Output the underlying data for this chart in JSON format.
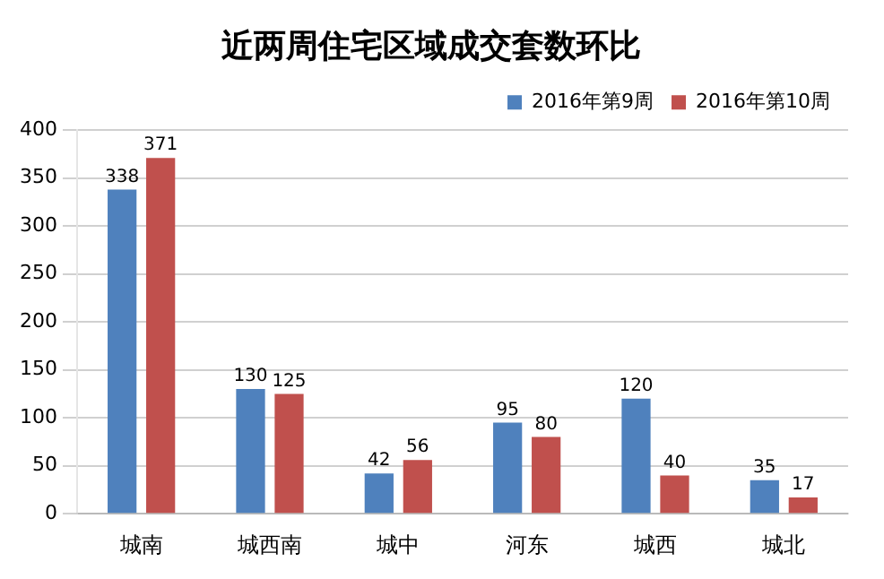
{
  "chart_data": {
    "type": "bar",
    "title": "近两周住宅区域成交套数环比",
    "categories": [
      "城南",
      "城西南",
      "城中",
      "河东",
      "城西",
      "城北"
    ],
    "series": [
      {
        "name": "2016年第9周",
        "color": "#4f81bd",
        "values": [
          338,
          130,
          42,
          95,
          120,
          35
        ]
      },
      {
        "name": "2016年第10周",
        "color": "#c0504d",
        "values": [
          371,
          125,
          56,
          80,
          40,
          17
        ]
      }
    ],
    "ylim": [
      0,
      400
    ],
    "yticks": [
      0,
      50,
      100,
      150,
      200,
      250,
      300,
      350,
      400
    ],
    "grid": "y",
    "legend": "top right",
    "data_labels": true
  }
}
